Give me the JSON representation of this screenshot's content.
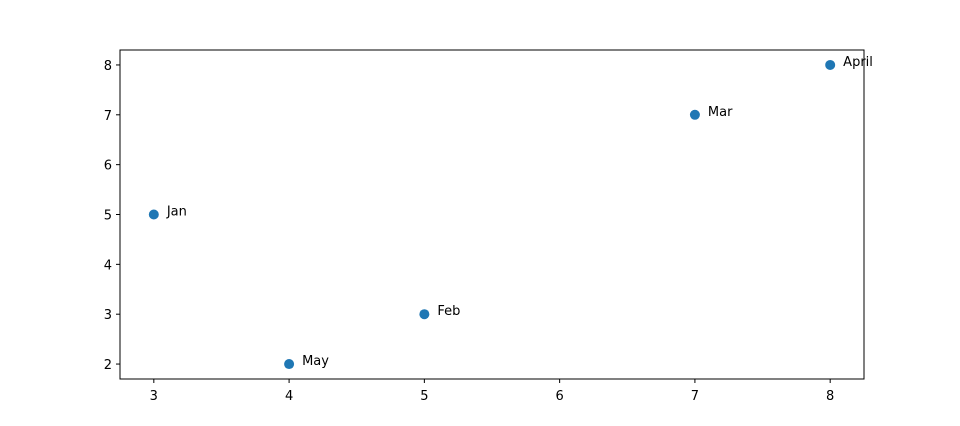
{
  "chart_data": {
    "type": "scatter",
    "title": "",
    "xlabel": "",
    "ylabel": "",
    "x": [
      3,
      5,
      7,
      8,
      4
    ],
    "y": [
      5,
      3,
      7,
      8,
      2
    ],
    "labels": [
      "Jan",
      "Feb",
      "Mar",
      "April",
      "May"
    ],
    "xlim": [
      2.75,
      8.25
    ],
    "ylim": [
      1.7,
      8.3
    ],
    "xticks": [
      "3",
      "4",
      "5",
      "6",
      "7",
      "8"
    ],
    "yticks": [
      "2",
      "3",
      "4",
      "5",
      "6",
      "7",
      "8"
    ],
    "grid": false,
    "legend": "none",
    "colors": {
      "marker": "#1f77b4",
      "axes": "#000000",
      "background": "#ffffff"
    }
  }
}
